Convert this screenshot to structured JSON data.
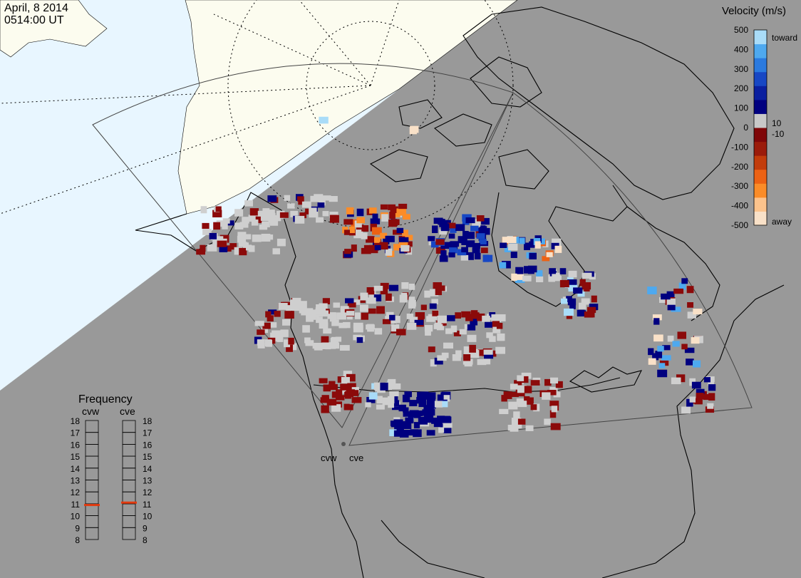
{
  "header": {
    "date": "April, 8 2014",
    "time": "0514:00 UT"
  },
  "colors": {
    "night": "#999999",
    "day_sky": "#e8f6ff",
    "day_land": "#fcfcef",
    "ground_scatter": "#cfcfcf",
    "coastline": "#000000"
  },
  "stations": [
    {
      "code": "cvw"
    },
    {
      "code": "cve"
    }
  ],
  "velocity_legend": {
    "title": "Velocity (m/s)",
    "ticks": [
      "500",
      "400",
      "300",
      "200",
      "100",
      "0",
      "-100",
      "-200",
      "-300",
      "-400",
      "-500"
    ],
    "near_zero_pos": "10",
    "near_zero_neg": "-10",
    "toward_label": "toward",
    "away_label": "away",
    "colors": [
      "#f9e1c8",
      "#fcc38c",
      "#fb8c28",
      "#ec6214",
      "#c23c0b",
      "#9b1b0a",
      "#7f0608",
      "#c8c8c8",
      "#00007f",
      "#0a1f9f",
      "#1747c4",
      "#2a7adf",
      "#4ea9ef",
      "#a9dcf8"
    ]
  },
  "frequency_panel": {
    "title": "Frequency",
    "labels": [
      "18",
      "17",
      "16",
      "15",
      "14",
      "13",
      "12",
      "11",
      "10",
      "9",
      "8"
    ],
    "indicator_color": "#e33b10",
    "cvw_mhz": 10.9,
    "cve_mhz": 11.1
  }
}
